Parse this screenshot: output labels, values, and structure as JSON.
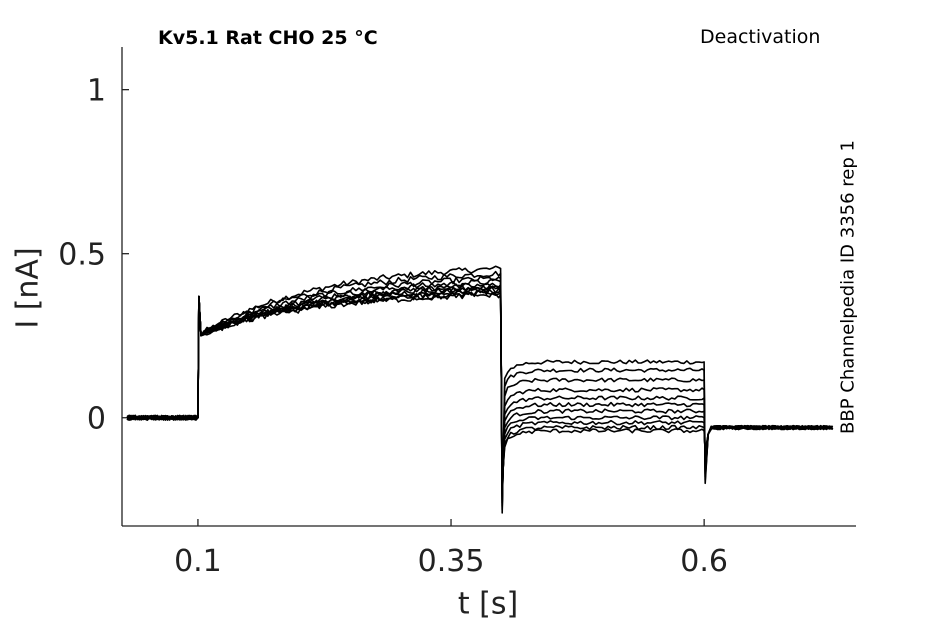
{
  "chart_data": {
    "type": "line",
    "title_left": "Kv5.1  Rat  CHO  25 °C",
    "title_right": "Deactivation",
    "side_label": "BBP Channelpedia ID 3356 rep 1",
    "xlabel": "t [s]",
    "ylabel": "I [nA]",
    "xlim": [
      0.025,
      0.75
    ],
    "ylim": [
      -0.33,
      1.13
    ],
    "xticks": [
      0.1,
      0.35,
      0.6
    ],
    "xtick_labels": [
      "0.1",
      "0.35",
      "0.6"
    ],
    "yticks": [
      0,
      0.5,
      1
    ],
    "ytick_labels": [
      "0",
      "0.5",
      "1"
    ],
    "grid": false,
    "line_color": "#000000",
    "protocol": {
      "baseline_end": 0.1,
      "activation_end": 0.4,
      "deactivation_end": 0.6,
      "trace_end": 0.73
    },
    "series": [
      {
        "values": {
          "baseline": 0.0,
          "onset_peak": 0.37,
          "act_start": 0.25,
          "act_end": 0.455,
          "step_dip": -0.29,
          "tail_level": 0.17,
          "end_dip": -0.2,
          "final": -0.03
        }
      },
      {
        "values": {
          "baseline": 0.0,
          "onset_peak": 0.37,
          "act_start": 0.25,
          "act_end": 0.44,
          "step_dip": -0.28,
          "tail_level": 0.145,
          "end_dip": -0.19,
          "final": -0.03
        }
      },
      {
        "values": {
          "baseline": 0.0,
          "onset_peak": 0.37,
          "act_start": 0.25,
          "act_end": 0.425,
          "step_dip": -0.27,
          "tail_level": 0.115,
          "end_dip": -0.18,
          "final": -0.03
        }
      },
      {
        "values": {
          "baseline": 0.0,
          "onset_peak": 0.37,
          "act_start": 0.25,
          "act_end": 0.415,
          "step_dip": -0.26,
          "tail_level": 0.085,
          "end_dip": -0.17,
          "final": -0.03
        }
      },
      {
        "values": {
          "baseline": 0.0,
          "onset_peak": 0.37,
          "act_start": 0.25,
          "act_end": 0.405,
          "step_dip": -0.25,
          "tail_level": 0.06,
          "end_dip": -0.16,
          "final": -0.03
        }
      },
      {
        "values": {
          "baseline": 0.0,
          "onset_peak": 0.37,
          "act_start": 0.25,
          "act_end": 0.4,
          "step_dip": -0.24,
          "tail_level": 0.04,
          "end_dip": -0.15,
          "final": -0.03
        }
      },
      {
        "values": {
          "baseline": 0.0,
          "onset_peak": 0.37,
          "act_start": 0.25,
          "act_end": 0.395,
          "step_dip": -0.23,
          "tail_level": 0.02,
          "end_dip": -0.14,
          "final": -0.03
        }
      },
      {
        "values": {
          "baseline": 0.0,
          "onset_peak": 0.37,
          "act_start": 0.25,
          "act_end": 0.39,
          "step_dip": -0.22,
          "tail_level": 0.0,
          "end_dip": -0.13,
          "final": -0.03
        }
      },
      {
        "values": {
          "baseline": 0.0,
          "onset_peak": 0.37,
          "act_start": 0.25,
          "act_end": 0.385,
          "step_dip": -0.21,
          "tail_level": -0.015,
          "end_dip": -0.12,
          "final": -0.03
        }
      },
      {
        "values": {
          "baseline": 0.0,
          "onset_peak": 0.37,
          "act_start": 0.25,
          "act_end": 0.38,
          "step_dip": -0.2,
          "tail_level": -0.03,
          "end_dip": -0.11,
          "final": -0.03
        }
      },
      {
        "values": {
          "baseline": 0.0,
          "onset_peak": 0.37,
          "act_start": 0.25,
          "act_end": 0.375,
          "step_dip": -0.19,
          "tail_level": -0.04,
          "end_dip": -0.1,
          "final": -0.03
        }
      }
    ]
  }
}
